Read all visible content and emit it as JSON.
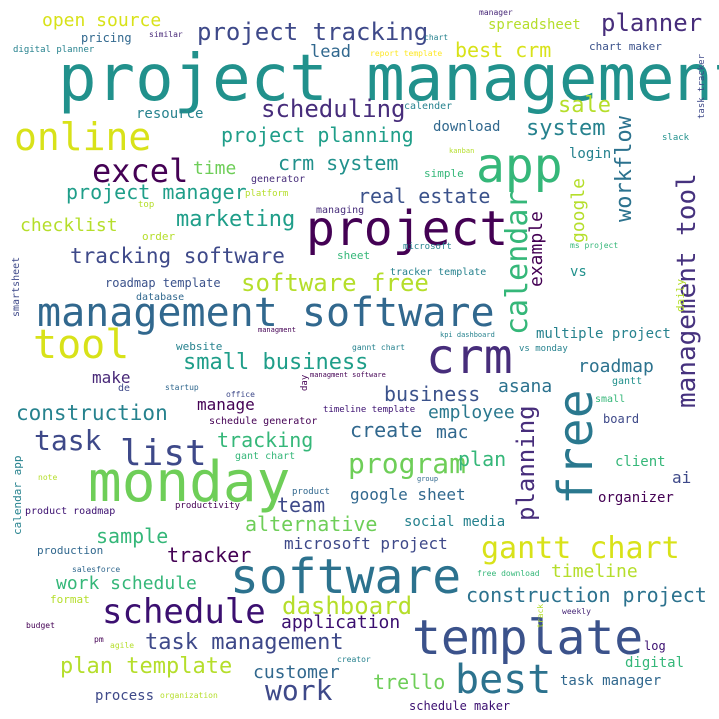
{
  "words": [
    {
      "text": "project management",
      "color": "#21918c",
      "rotation": "horizontal"
    },
    {
      "text": "management software",
      "color": "#31688e",
      "rotation": "horizontal"
    },
    {
      "text": "monday",
      "color": "#6ece58",
      "rotation": "horizontal"
    },
    {
      "text": "software",
      "color": "#2c728e",
      "rotation": "horizontal"
    },
    {
      "text": "template",
      "color": "#3b528b",
      "rotation": "horizontal"
    },
    {
      "text": "project",
      "color": "#440154",
      "rotation": "horizontal"
    },
    {
      "text": "crm",
      "color": "#472d7b",
      "rotation": "horizontal"
    },
    {
      "text": "app",
      "color": "#35b779",
      "rotation": "horizontal"
    },
    {
      "text": "free",
      "color": "#2a788e",
      "rotation": "vertical"
    },
    {
      "text": "best",
      "color": "#2c728e",
      "rotation": "horizontal"
    },
    {
      "text": "online",
      "color": "#d8e219",
      "rotation": "horizontal"
    },
    {
      "text": "tool",
      "color": "#d8e219",
      "rotation": "horizontal"
    },
    {
      "text": "schedule",
      "color": "#3b0f70",
      "rotation": "horizontal"
    },
    {
      "text": "list",
      "color": "#3e4989",
      "rotation": "horizontal"
    },
    {
      "text": "excel",
      "color": "#440154",
      "rotation": "horizontal"
    },
    {
      "text": "gantt chart",
      "color": "#d8e219",
      "rotation": "horizontal"
    },
    {
      "text": "management tool",
      "color": "#46327e",
      "rotation": "vertical"
    },
    {
      "text": "calendar",
      "color": "#35b779",
      "rotation": "vertical"
    },
    {
      "text": "work",
      "color": "#3e4989",
      "rotation": "horizontal"
    },
    {
      "text": "task",
      "color": "#3e4989",
      "rotation": "horizontal"
    },
    {
      "text": "program",
      "color": "#6ece58",
      "rotation": "horizontal"
    },
    {
      "text": "project tracking",
      "color": "#3e4989",
      "rotation": "horizontal"
    },
    {
      "text": "scheduling",
      "color": "#472d7b",
      "rotation": "horizontal"
    },
    {
      "text": "planner",
      "color": "#472d7b",
      "rotation": "horizontal"
    },
    {
      "text": "small business",
      "color": "#1f9e89",
      "rotation": "horizontal"
    },
    {
      "text": "tracking software",
      "color": "#3e4989",
      "rotation": "horizontal"
    },
    {
      "text": "software free",
      "color": "#b5de2b",
      "rotation": "horizontal"
    },
    {
      "text": "construction",
      "color": "#26828e",
      "rotation": "horizontal"
    },
    {
      "text": "dashboard",
      "color": "#b5de2b",
      "rotation": "horizontal"
    },
    {
      "text": "task management",
      "color": "#3e4989",
      "rotation": "horizontal"
    },
    {
      "text": "plan template",
      "color": "#b5de2b",
      "rotation": "horizontal"
    },
    {
      "text": "construction project",
      "color": "#2c728e",
      "rotation": "horizontal"
    },
    {
      "text": "workflow",
      "color": "#2c728e",
      "rotation": "vertical"
    },
    {
      "text": "planning",
      "color": "#472d7b",
      "rotation": "vertical"
    },
    {
      "text": "marketing",
      "color": "#1f9e89",
      "rotation": "horizontal"
    },
    {
      "text": "project planning",
      "color": "#1f9e89",
      "rotation": "horizontal"
    },
    {
      "text": "crm system",
      "color": "#21918c",
      "rotation": "horizontal"
    },
    {
      "text": "project manager",
      "color": "#1f9e89",
      "rotation": "horizontal"
    },
    {
      "text": "system",
      "color": "#26828e",
      "rotation": "horizontal"
    },
    {
      "text": "sale",
      "color": "#b5de2b",
      "rotation": "horizontal"
    },
    {
      "text": "best crm",
      "color": "#d8e219",
      "rotation": "horizontal"
    },
    {
      "text": "open source",
      "color": "#d8e219",
      "rotation": "horizontal"
    },
    {
      "text": "real estate",
      "color": "#3b528b",
      "rotation": "horizontal"
    },
    {
      "text": "business",
      "color": "#3b528b",
      "rotation": "horizontal"
    },
    {
      "text": "team",
      "color": "#3e4989",
      "rotation": "horizontal"
    },
    {
      "text": "alternative",
      "color": "#6ece58",
      "rotation": "horizontal"
    },
    {
      "text": "tracker",
      "color": "#440154",
      "rotation": "horizontal"
    },
    {
      "text": "sample",
      "color": "#35b779",
      "rotation": "horizontal"
    },
    {
      "text": "timeline",
      "color": "#b5de2b",
      "rotation": "horizontal"
    },
    {
      "text": "work schedule",
      "color": "#35b779",
      "rotation": "horizontal"
    },
    {
      "text": "application",
      "color": "#3b0f70",
      "rotation": "horizontal"
    },
    {
      "text": "customer",
      "color": "#31688e",
      "rotation": "horizontal"
    },
    {
      "text": "trello",
      "color": "#6ece58",
      "rotation": "horizontal"
    },
    {
      "text": "tracking",
      "color": "#35b779",
      "rotation": "horizontal"
    },
    {
      "text": "roadmap",
      "color": "#2c728e",
      "rotation": "horizontal"
    },
    {
      "text": "google sheet",
      "color": "#31688e",
      "rotation": "horizontal"
    },
    {
      "text": "microsoft project",
      "color": "#3e4989",
      "rotation": "horizontal"
    },
    {
      "text": "plan",
      "color": "#35b779",
      "rotation": "horizontal"
    },
    {
      "text": "create",
      "color": "#31688e",
      "rotation": "horizontal"
    },
    {
      "text": "mac",
      "color": "#31688e",
      "rotation": "horizontal"
    },
    {
      "text": "employee",
      "color": "#2a788e",
      "rotation": "horizontal"
    },
    {
      "text": "asana",
      "color": "#2c728e",
      "rotation": "horizontal"
    },
    {
      "text": "example",
      "color": "#440154",
      "rotation": "vertical"
    },
    {
      "text": "google",
      "color": "#b5de2b",
      "rotation": "vertical"
    },
    {
      "text": "time",
      "color": "#6ece58",
      "rotation": "horizontal"
    },
    {
      "text": "checklist",
      "color": "#b5de2b",
      "rotation": "horizontal"
    },
    {
      "text": "lead",
      "color": "#31688e",
      "rotation": "horizontal"
    },
    {
      "text": "spreadsheet",
      "color": "#b5de2b",
      "rotation": "horizontal"
    },
    {
      "text": "download",
      "color": "#31688e",
      "rotation": "horizontal"
    },
    {
      "text": "login",
      "color": "#26828e",
      "rotation": "horizontal"
    },
    {
      "text": "resource",
      "color": "#26828e",
      "rotation": "horizontal"
    },
    {
      "text": "make",
      "color": "#482878",
      "rotation": "horizontal"
    },
    {
      "text": "manage",
      "color": "#440154",
      "rotation": "horizontal"
    },
    {
      "text": "multiple project",
      "color": "#26828e",
      "rotation": "horizontal"
    },
    {
      "text": "vs",
      "color": "#21918c",
      "rotation": "horizontal"
    },
    {
      "text": "organizer",
      "color": "#440154",
      "rotation": "horizontal"
    },
    {
      "text": "client",
      "color": "#35b779",
      "rotation": "horizontal"
    },
    {
      "text": "ai",
      "color": "#3e4989",
      "rotation": "horizontal"
    },
    {
      "text": "social media",
      "color": "#26828e",
      "rotation": "horizontal"
    },
    {
      "text": "task manager",
      "color": "#31688e",
      "rotation": "horizontal"
    },
    {
      "text": "digital",
      "color": "#35b779",
      "rotation": "horizontal"
    },
    {
      "text": "process",
      "color": "#3e4989",
      "rotation": "horizontal"
    },
    {
      "text": "schedule maker",
      "color": "#3b0f70",
      "rotation": "horizontal"
    },
    {
      "text": "pricing",
      "color": "#31688e",
      "rotation": "horizontal"
    },
    {
      "text": "chart maker",
      "color": "#3b528b",
      "rotation": "horizontal"
    },
    {
      "text": "website",
      "color": "#26828e",
      "rotation": "horizontal"
    },
    {
      "text": "format",
      "color": "#b5de2b",
      "rotation": "horizontal"
    },
    {
      "text": "production",
      "color": "#31688e",
      "rotation": "horizontal"
    },
    {
      "text": "gantt",
      "color": "#21918c",
      "rotation": "horizontal"
    },
    {
      "text": "small",
      "color": "#35b779",
      "rotation": "horizontal"
    },
    {
      "text": "board",
      "color": "#3e4989",
      "rotation": "horizontal"
    },
    {
      "text": "simple",
      "color": "#35b779",
      "rotation": "horizontal"
    },
    {
      "text": "sheet",
      "color": "#35b779",
      "rotation": "horizontal"
    },
    {
      "text": "roadmap template",
      "color": "#3b528b",
      "rotation": "horizontal"
    },
    {
      "text": "tracker template",
      "color": "#26828e",
      "rotation": "horizontal"
    },
    {
      "text": "database",
      "color": "#31688e",
      "rotation": "horizontal"
    },
    {
      "text": "schedule generator",
      "color": "#440154",
      "rotation": "horizontal"
    },
    {
      "text": "timeline template",
      "color": "#3b0f70",
      "rotation": "horizontal"
    },
    {
      "text": "gant chart",
      "color": "#35b779",
      "rotation": "horizontal"
    },
    {
      "text": "similar",
      "color": "#482878",
      "rotation": "horizontal"
    },
    {
      "text": "chart",
      "color": "#26828e",
      "rotation": "horizontal"
    },
    {
      "text": "manager",
      "color": "#482878",
      "rotation": "horizontal"
    },
    {
      "text": "report template",
      "color": "#fde725",
      "rotation": "horizontal"
    },
    {
      "text": "digital planner",
      "color": "#26828e",
      "rotation": "horizontal"
    },
    {
      "text": "calender",
      "color": "#26828e",
      "rotation": "horizontal"
    },
    {
      "text": "generator",
      "color": "#472d7b",
      "rotation": "horizontal"
    },
    {
      "text": "platform",
      "color": "#b5de2b",
      "rotation": "horizontal"
    },
    {
      "text": "managing",
      "color": "#472d7b",
      "rotation": "horizontal"
    },
    {
      "text": "order",
      "color": "#b5de2b",
      "rotation": "horizontal"
    },
    {
      "text": "top",
      "color": "#b5de2b",
      "rotation": "horizontal"
    },
    {
      "text": "kanban",
      "color": "#b5de2b",
      "rotation": "horizontal"
    },
    {
      "text": "microsoft",
      "color": "#26828e",
      "rotation": "horizontal"
    },
    {
      "text": "ms project",
      "color": "#35b779",
      "rotation": "horizontal"
    },
    {
      "text": "kpi dashboard",
      "color": "#26828e",
      "rotation": "horizontal"
    },
    {
      "text": "gannt chart",
      "color": "#26828e",
      "rotation": "horizontal"
    },
    {
      "text": "vs monday",
      "color": "#26828e",
      "rotation": "horizontal"
    },
    {
      "text": "managment software",
      "color": "#440154",
      "rotation": "horizontal"
    },
    {
      "text": "startup",
      "color": "#31688e",
      "rotation": "horizontal"
    },
    {
      "text": "office",
      "color": "#3e4989",
      "rotation": "horizontal"
    },
    {
      "text": "de",
      "color": "#3e4989",
      "rotation": "horizontal"
    },
    {
      "text": "managment",
      "color": "#440154",
      "rotation": "horizontal"
    },
    {
      "text": "smartsheet",
      "color": "#3e4989",
      "rotation": "vertical"
    },
    {
      "text": "daily",
      "color": "#b5de2b",
      "rotation": "vertical"
    },
    {
      "text": "slack",
      "color": "#21918c",
      "rotation": "horizontal"
    },
    {
      "text": "task tracker",
      "color": "#3e4989",
      "rotation": "vertical"
    },
    {
      "text": "day",
      "color": "#440154",
      "rotation": "vertical"
    },
    {
      "text": "calendar app",
      "color": "#26828e",
      "rotation": "vertical"
    },
    {
      "text": "note",
      "color": "#b5de2b",
      "rotation": "horizontal"
    },
    {
      "text": "product roadmap",
      "color": "#3b0f70",
      "rotation": "horizontal"
    },
    {
      "text": "product",
      "color": "#31688e",
      "rotation": "horizontal"
    },
    {
      "text": "group",
      "color": "#31688e",
      "rotation": "horizontal"
    },
    {
      "text": "productivity",
      "color": "#440154",
      "rotation": "horizontal"
    },
    {
      "text": "salesforce",
      "color": "#31688e",
      "rotation": "horizontal"
    },
    {
      "text": "free download",
      "color": "#35b779",
      "rotation": "horizontal"
    },
    {
      "text": "weekly",
      "color": "#482878",
      "rotation": "horizontal"
    },
    {
      "text": "track",
      "color": "#b5de2b",
      "rotation": "vertical"
    },
    {
      "text": "budget",
      "color": "#440154",
      "rotation": "horizontal"
    },
    {
      "text": "pm",
      "color": "#440154",
      "rotation": "horizontal"
    },
    {
      "text": "agile",
      "color": "#b5de2b",
      "rotation": "horizontal"
    },
    {
      "text": "creator",
      "color": "#26828e",
      "rotation": "horizontal"
    },
    {
      "text": "organization",
      "color": "#b5de2b",
      "rotation": "horizontal"
    },
    {
      "text": "log",
      "color": "#3b0f70",
      "rotation": "horizontal"
    }
  ]
}
